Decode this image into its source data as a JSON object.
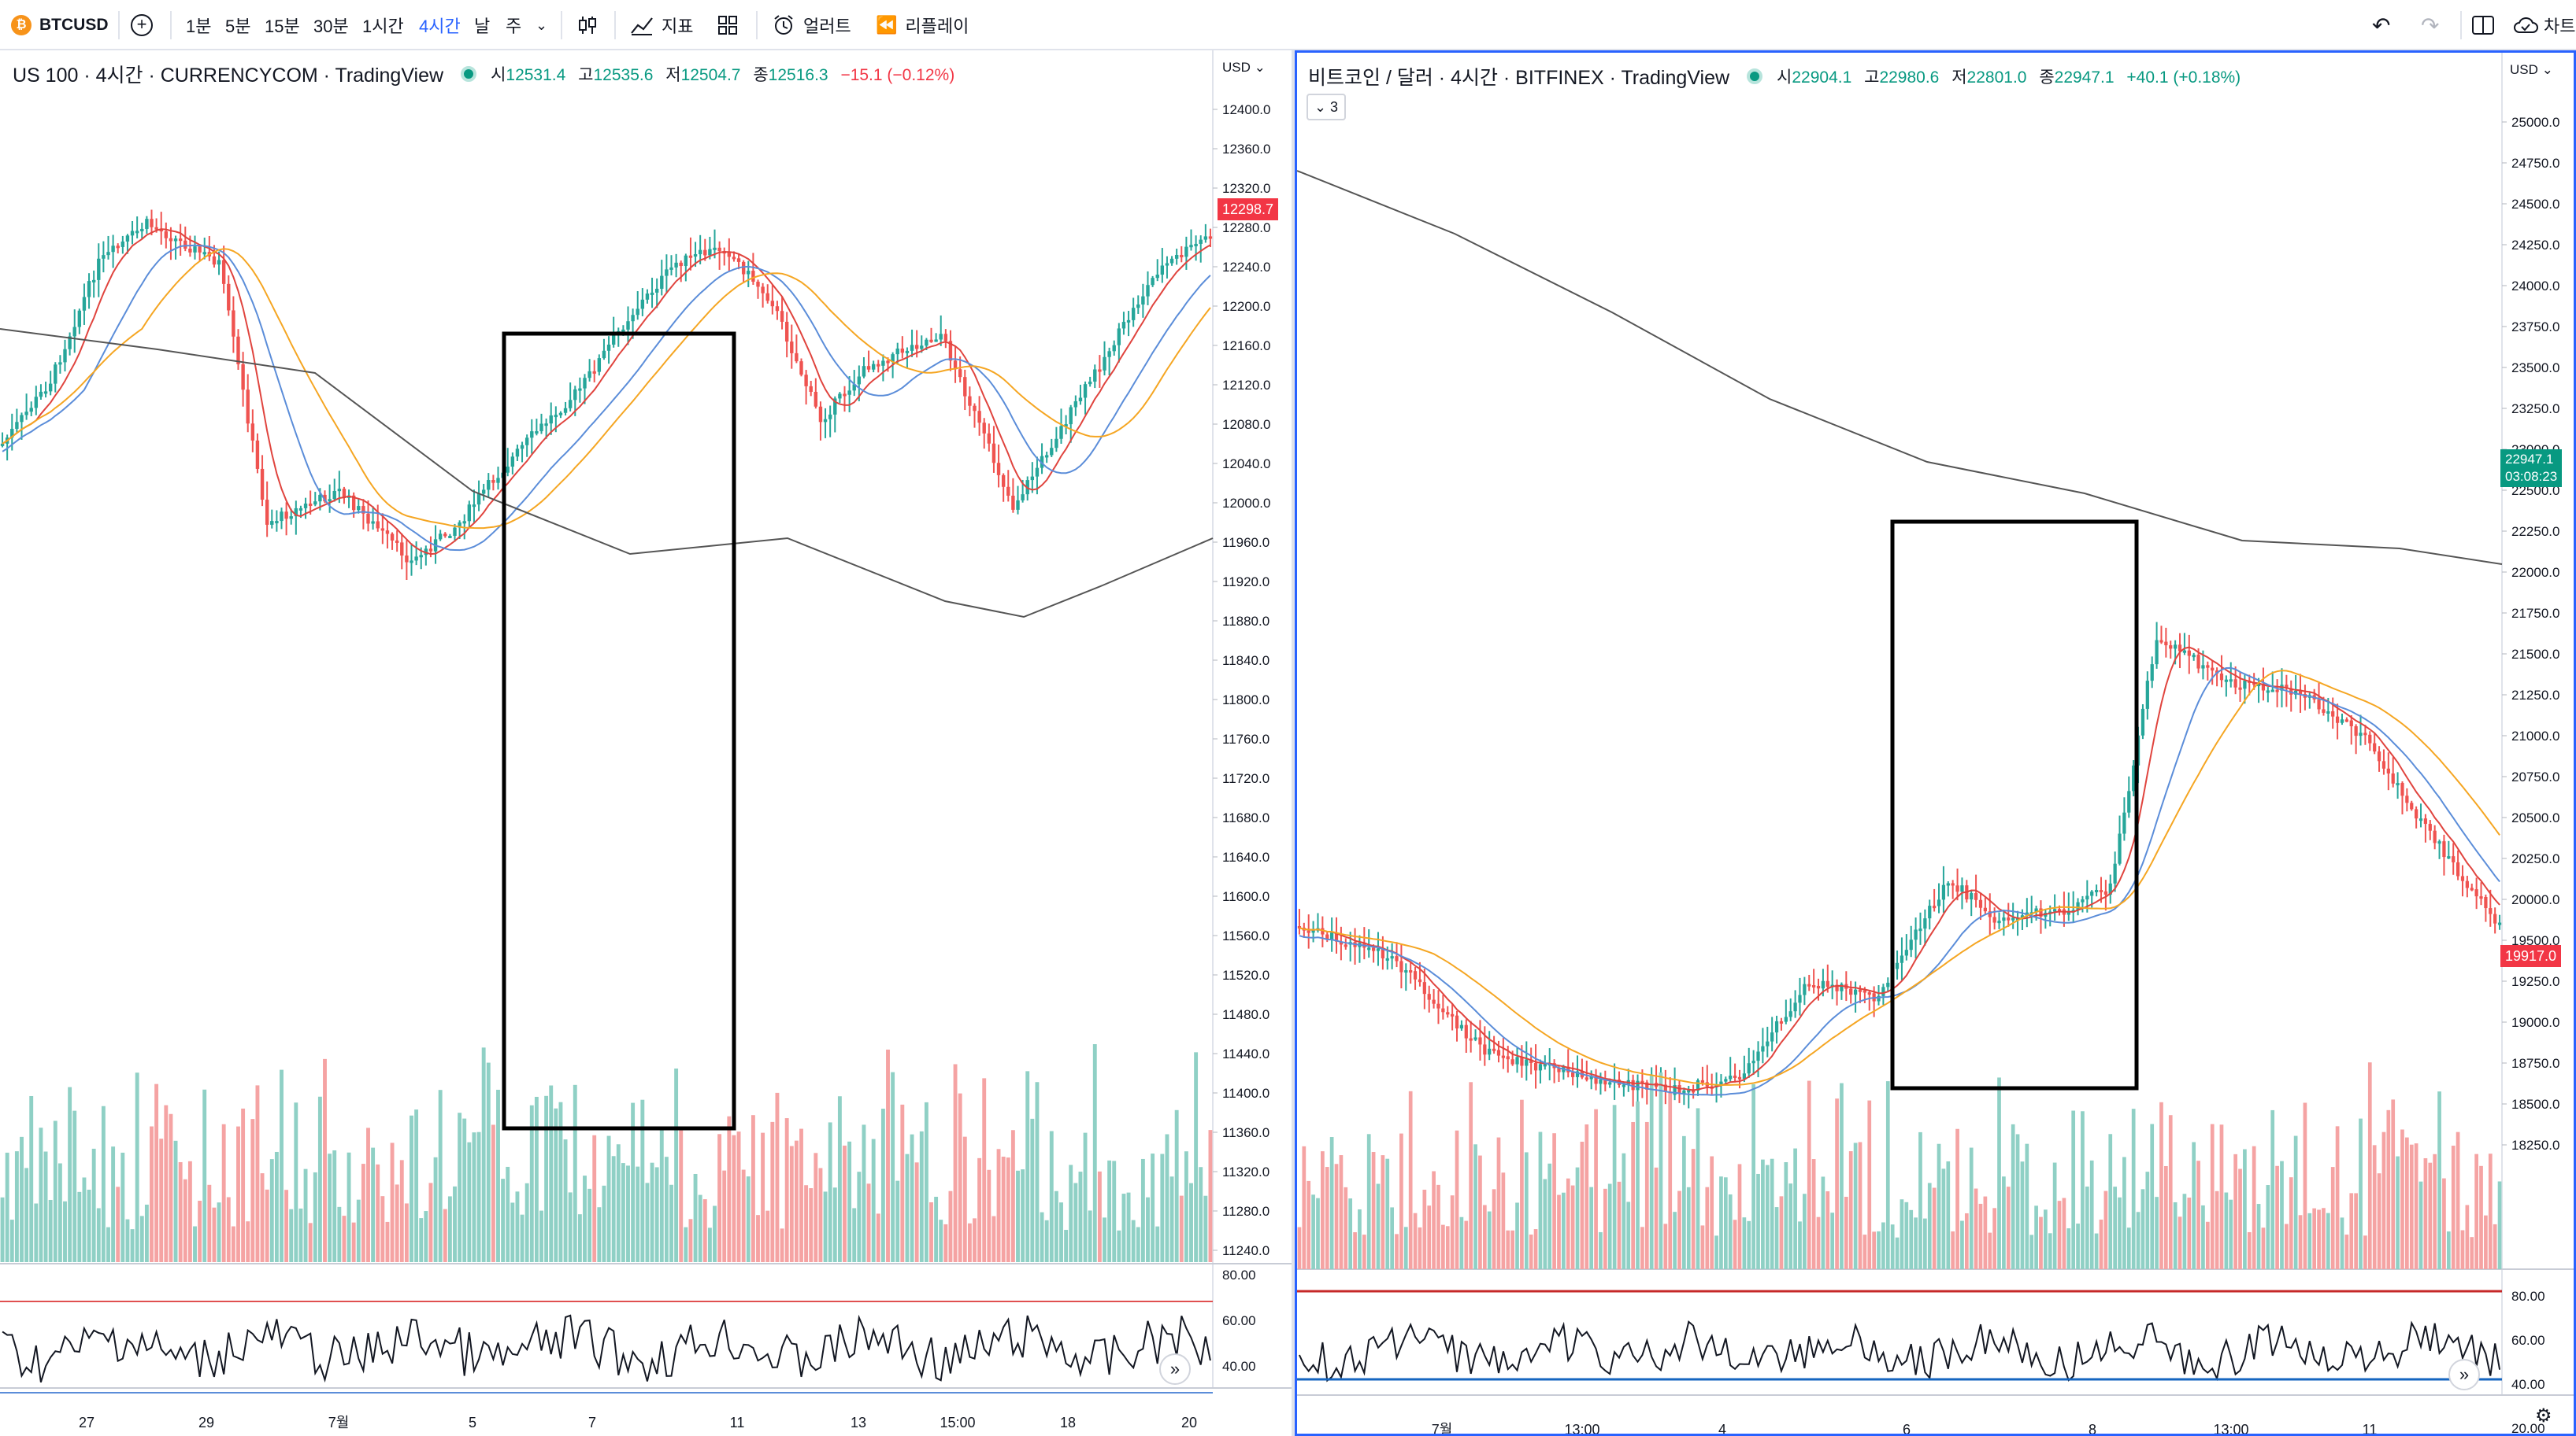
{
  "toolbar": {
    "symbol": "BTCUSD",
    "add_symbol_icon": "plus-circle-icon",
    "intervals": [
      "1분",
      "5분",
      "15분",
      "30분",
      "1시간",
      "4시간",
      "날",
      "주"
    ],
    "active_interval": "4시간",
    "chart_type_icon": "candles-icon",
    "indicators_label": "지표",
    "alerts_label": "얼러트",
    "replay_label": "리플레이",
    "right_cut_label": "차트"
  },
  "left": {
    "legend": {
      "title": "US 100 · 4시간 · CURRENCYCOM · TradingView",
      "o_k": "시",
      "o": "12531.4",
      "h_k": "고",
      "h": "12535.6",
      "l_k": "저",
      "l": "12504.7",
      "c_k": "종",
      "c": "12516.3",
      "change": "−15.1 (−0.12%)"
    },
    "currency": "USD",
    "last_price": "12298.7",
    "price_ticks": [
      "12400.0",
      "12360.0",
      "12320.0",
      "12280.0",
      "12240.0",
      "12200.0",
      "12160.0",
      "12120.0",
      "12080.0",
      "12040.0",
      "12000.0",
      "11960.0",
      "11920.0",
      "11880.0",
      "11840.0",
      "11800.0",
      "11760.0",
      "11720.0",
      "11680.0",
      "11640.0",
      "11600.0",
      "11560.0",
      "11520.0",
      "11480.0",
      "11440.0",
      "11400.0",
      "11360.0",
      "11320.0",
      "11280.0",
      "11240.0"
    ],
    "rsi_ticks": [
      "80.00",
      "60.00",
      "40.00"
    ],
    "time_labels": [
      "27",
      "29",
      "7월",
      "5",
      "7",
      "11",
      "13",
      "15:00",
      "18",
      "20"
    ]
  },
  "right": {
    "legend": {
      "title": "비트코인 / 달러 · 4시간 · BITFINEX · TradingView",
      "o_k": "시",
      "o": "22904.1",
      "h_k": "고",
      "h": "22980.6",
      "l_k": "저",
      "l": "22801.0",
      "c_k": "종",
      "c": "22947.1",
      "change": "+40.1 (+0.18%)"
    },
    "hidden_indicators": "3",
    "currency": "USD",
    "last_price": "22947.1",
    "countdown": "03:08:23",
    "red_tag": "19917.0",
    "price_ticks": [
      "25000.0",
      "24750.0",
      "24500.0",
      "24250.0",
      "24000.0",
      "23750.0",
      "23500.0",
      "23250.0",
      "23000.0",
      "22500.0",
      "22250.0",
      "22000.0",
      "21750.0",
      "21500.0",
      "21250.0",
      "21000.0",
      "20750.0",
      "20500.0",
      "20250.0",
      "20000.0",
      "19500.0",
      "19250.0",
      "19000.0",
      "18750.0",
      "18500.0",
      "18250.0"
    ],
    "rsi_ticks": [
      "80.00",
      "60.00",
      "40.00",
      "20.00"
    ],
    "time_labels": [
      "7월",
      "13:00",
      "4",
      "6",
      "8",
      "13:00",
      "11"
    ]
  },
  "colors": {
    "up": "#26a69a",
    "down": "#ef5350",
    "vol_up": "#8fd0c5",
    "vol_down": "#f5a3a3",
    "accent": "#2962ff",
    "ma_red": "#e0443e",
    "ma_blue": "#5b8dd9",
    "ma_orange": "#f5a623"
  }
}
